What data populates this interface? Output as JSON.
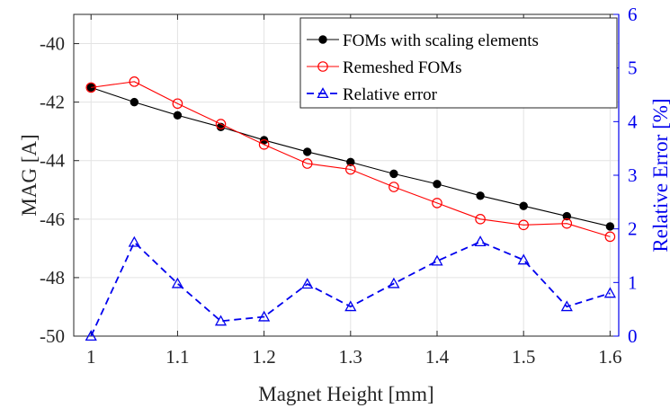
{
  "chart_data": {
    "type": "line",
    "xlabel": "Magnet Height [mm]",
    "ylabel_left": "MAG [A]",
    "ylabel_right": "Relative Error [%]",
    "xlim": [
      0.98,
      1.61
    ],
    "ylim_left": [
      -50,
      -39
    ],
    "ylim_right": [
      0,
      6
    ],
    "x_ticks": [
      "1",
      "1.1",
      "1.2",
      "1.3",
      "1.4",
      "1.5",
      "1.6"
    ],
    "y_left_ticks": [
      "-50",
      "-48",
      "-46",
      "-44",
      "-42",
      "-40"
    ],
    "y_right_ticks": [
      "0",
      "1",
      "2",
      "3",
      "4",
      "5",
      "6"
    ],
    "grid": true,
    "legend_position": "top-right",
    "x": [
      1.0,
      1.05,
      1.1,
      1.15,
      1.2,
      1.25,
      1.3,
      1.35,
      1.4,
      1.45,
      1.5,
      1.55,
      1.6
    ],
    "series": [
      {
        "name": "FOMs with scaling elements",
        "axis": "left",
        "color": "#000000",
        "marker": "filled-circle",
        "line": "solid",
        "values": [
          -41.5,
          -42.0,
          -42.45,
          -42.85,
          -43.3,
          -43.7,
          -44.05,
          -44.45,
          -44.8,
          -45.2,
          -45.55,
          -45.9,
          -46.25
        ]
      },
      {
        "name": "Remeshed FOMs",
        "axis": "left",
        "color": "#ff0000",
        "marker": "open-circle",
        "line": "solid",
        "values": [
          -41.5,
          -41.3,
          -42.05,
          -42.75,
          -43.45,
          -44.1,
          -44.3,
          -44.9,
          -45.45,
          -46.0,
          -46.2,
          -46.15,
          -46.6
        ]
      },
      {
        "name": "Relative error",
        "axis": "right",
        "color": "#0000ee",
        "marker": "open-triangle",
        "line": "dashed",
        "values": [
          0.0,
          1.75,
          0.98,
          0.28,
          0.36,
          0.97,
          0.55,
          0.98,
          1.4,
          1.76,
          1.42,
          0.55,
          0.8
        ]
      }
    ]
  }
}
